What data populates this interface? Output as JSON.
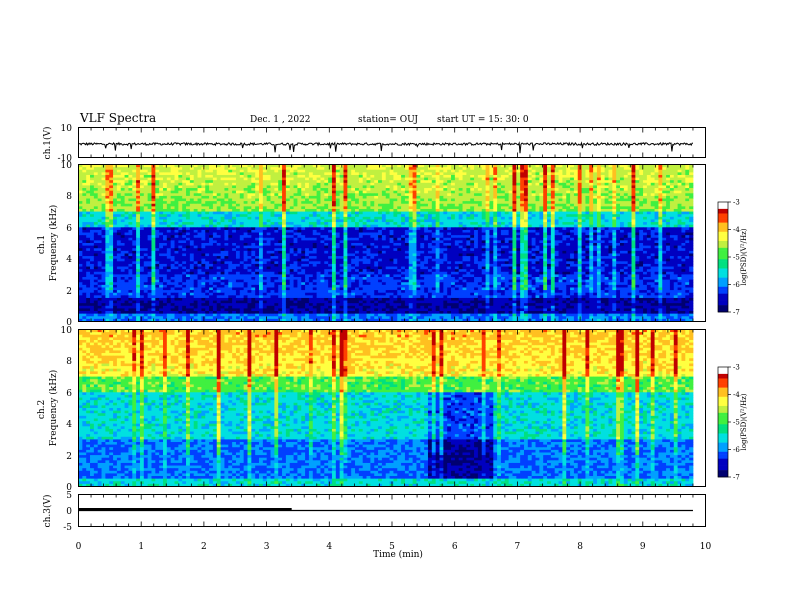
{
  "header": {
    "title": "VLF Spectra",
    "date": "Dec. 1 , 2022",
    "station": "station= OUJ",
    "start": "start  UT =   15: 30: 0"
  },
  "colors": {
    "palette": [
      "#000070",
      "#0000c0",
      "#0040ff",
      "#00a0ff",
      "#00e0e0",
      "#00e080",
      "#40f040",
      "#c0f040",
      "#ffff40",
      "#ffc020",
      "#ff4000",
      "#c00000"
    ]
  },
  "chart_data": [
    {
      "type": "line",
      "name": "ch1-waveform",
      "ylabel": "ch.1(V)",
      "ylim": [
        -10,
        10
      ],
      "yticks": [
        "10",
        "-10"
      ],
      "xlim": [
        0,
        10
      ],
      "trace": {
        "baseline": -1,
        "noise_amplitude": 0.8,
        "x_end": 9.8
      }
    },
    {
      "type": "heatmap",
      "name": "ch1-spectrogram",
      "ylabel": "ch.1\nFrequency (kHz)",
      "ylim": [
        0,
        10
      ],
      "yticks": [
        "0",
        "2",
        "4",
        "6",
        "8",
        "10"
      ],
      "xlim": [
        0,
        10
      ],
      "x_end": 9.8,
      "colorbar": {
        "label": "log(PSD)(V²/Hz)",
        "range": [
          -7,
          -3
        ],
        "ticks": [
          "-3",
          "-4",
          "-5",
          "-6",
          "-7"
        ]
      }
    },
    {
      "type": "heatmap",
      "name": "ch2-spectrogram",
      "ylabel": "ch.2\nFrequency (kHz)",
      "ylim": [
        0,
        10
      ],
      "yticks": [
        "0",
        "2",
        "4",
        "6",
        "8",
        "10"
      ],
      "xlim": [
        0,
        10
      ],
      "x_end": 9.8,
      "colorbar": {
        "label": "log(PSD)(V²/Hz)",
        "range": [
          -7,
          -3
        ],
        "ticks": [
          "-3",
          "-4",
          "-5",
          "-6",
          "-7"
        ]
      }
    },
    {
      "type": "line",
      "name": "ch3-waveform",
      "ylabel": "ch.3(V)",
      "ylim": [
        -5,
        5
      ],
      "yticks": [
        "5",
        "0",
        "-5"
      ],
      "xlim": [
        0,
        10
      ],
      "xlabel": "Time (min)",
      "xticks": [
        "0",
        "1",
        "2",
        "3",
        "4",
        "5",
        "6",
        "7",
        "8",
        "9",
        "10"
      ],
      "trace": {
        "value": 0,
        "thick_until": 3.4,
        "x_end": 9.8
      }
    }
  ]
}
